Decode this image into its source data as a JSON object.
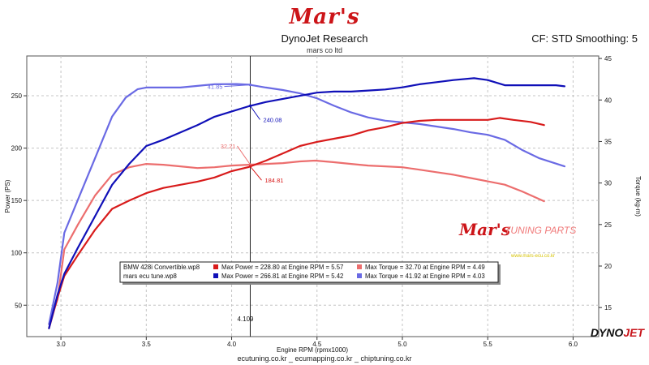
{
  "header": {
    "brand_logo": "Mar's",
    "title": "DynoJet Research",
    "subtitle": "mars co ltd",
    "correction": "CF: STD Smoothing: 5"
  },
  "footer": {
    "text": "ecutuning.co.kr _ ecumapping.co.kr _ chiptuning.co.kr"
  },
  "watermark": {
    "logo": "Mar's",
    "text": "TUNING PARTS",
    "url": "www.mars-ecu.co.kr"
  },
  "dynojet_logo": {
    "part1": "DYNO",
    "part2": "JET"
  },
  "colors": {
    "red": "#d81b1b",
    "light_red": "#ec6e6e",
    "blue": "#1010b8",
    "light_blue": "#6a6ae4",
    "grid": "#bdbdbd",
    "logo_red": "#cc1418"
  },
  "chart_data": {
    "type": "line",
    "xlabel": "Engine RPM (rpmx1000)",
    "ylabel": "Power (PS)",
    "y2label": "Torque (kg-m)",
    "xlim": [
      2.8,
      6.15
    ],
    "ylim": [
      20,
      288
    ],
    "y2lim": [
      11.5,
      45.3
    ],
    "x_ticks": [
      3.0,
      3.5,
      4.0,
      4.5,
      5.0,
      5.5,
      6.0
    ],
    "y_ticks": [
      50,
      100,
      150,
      200,
      250
    ],
    "y2_ticks": [
      15,
      20,
      25,
      30,
      35,
      40,
      45
    ],
    "grid": true,
    "cursor": {
      "x": 4.109,
      "label": "4.109"
    },
    "annotations": [
      {
        "label": "41.85",
        "series": "mars ecu tune.wp8 Torque"
      },
      {
        "label": "240.08",
        "series": "mars ecu tune.wp8 Power"
      },
      {
        "label": "32.21",
        "series": "BMW 428i Convertible.wp8 Torque"
      },
      {
        "label": "184.81",
        "series": "BMW 428i Convertible.wp8 Power"
      }
    ],
    "legend": {
      "placement": "bottom-left",
      "rows": [
        {
          "file": "BMW 428i Convertible.wp8",
          "power": "Max Power = 228.80 at Engine RPM = 5.57",
          "torque": "Max Torque = 32.70 at Engine RPM = 4.49"
        },
        {
          "file": "mars ecu tune.wp8",
          "power": "Max Power = 266.81 at Engine RPM = 5.42",
          "torque": "Max Torque = 41.92 at Engine RPM = 4.03"
        }
      ]
    },
    "series": [
      {
        "file": "BMW 428i Convertible.wp8",
        "quantity": "Power",
        "axis": "left",
        "color": "#d81b1b",
        "x": [
          2.93,
          2.98,
          3.02,
          3.1,
          3.2,
          3.3,
          3.4,
          3.5,
          3.6,
          3.7,
          3.8,
          3.9,
          4.0,
          4.1,
          4.2,
          4.3,
          4.4,
          4.5,
          4.6,
          4.7,
          4.8,
          4.9,
          5.0,
          5.1,
          5.2,
          5.3,
          5.4,
          5.5,
          5.57,
          5.65,
          5.75,
          5.83
        ],
        "values": [
          28,
          57,
          78,
          98,
          122,
          142,
          150,
          157,
          162,
          165,
          168,
          172,
          178,
          182,
          188,
          195,
          202,
          206,
          209,
          212,
          217,
          220,
          224,
          226,
          227,
          227,
          227,
          227,
          228.8,
          227,
          225,
          222
        ]
      },
      {
        "file": "mars ecu tune.wp8",
        "quantity": "Power",
        "axis": "left",
        "color": "#1010b8",
        "x": [
          2.93,
          2.98,
          3.02,
          3.1,
          3.2,
          3.3,
          3.4,
          3.5,
          3.6,
          3.7,
          3.8,
          3.9,
          4.0,
          4.1,
          4.2,
          4.3,
          4.4,
          4.5,
          4.6,
          4.7,
          4.8,
          4.9,
          5.0,
          5.1,
          5.2,
          5.3,
          5.42,
          5.5,
          5.6,
          5.7,
          5.8,
          5.9,
          5.95
        ],
        "values": [
          28,
          60,
          80,
          105,
          135,
          165,
          185,
          202,
          208,
          215,
          222,
          230,
          235,
          240,
          244,
          247,
          250,
          253,
          254,
          254,
          255,
          256,
          258,
          261,
          263,
          265,
          266.8,
          265,
          260,
          260,
          260,
          260,
          259
        ]
      },
      {
        "file": "BMW 428i Convertible.wp8",
        "quantity": "Torque",
        "axis": "right",
        "color": "#ec6e6e",
        "x": [
          2.93,
          2.98,
          3.02,
          3.1,
          3.2,
          3.3,
          3.4,
          3.5,
          3.6,
          3.7,
          3.8,
          3.9,
          4.0,
          4.1,
          4.2,
          4.3,
          4.4,
          4.49,
          4.6,
          4.7,
          4.8,
          4.9,
          5.0,
          5.1,
          5.2,
          5.3,
          5.4,
          5.5,
          5.6,
          5.7,
          5.83
        ],
        "values": [
          13,
          16,
          22,
          25,
          28.5,
          31,
          31.9,
          32.3,
          32.2,
          32.0,
          31.8,
          31.9,
          32.1,
          32.2,
          32.3,
          32.4,
          32.6,
          32.7,
          32.5,
          32.3,
          32.1,
          32.0,
          31.9,
          31.6,
          31.3,
          31.0,
          30.6,
          30.2,
          29.8,
          29.0,
          27.8
        ]
      },
      {
        "file": "mars ecu tune.wp8",
        "quantity": "Torque",
        "axis": "right",
        "color": "#6a6ae4",
        "x": [
          2.93,
          2.98,
          3.02,
          3.1,
          3.2,
          3.3,
          3.38,
          3.45,
          3.5,
          3.6,
          3.7,
          3.8,
          3.9,
          4.03,
          4.1,
          4.2,
          4.3,
          4.4,
          4.5,
          4.6,
          4.7,
          4.8,
          4.9,
          5.0,
          5.1,
          5.2,
          5.3,
          5.4,
          5.5,
          5.6,
          5.7,
          5.8,
          5.95
        ],
        "values": [
          13,
          18,
          24,
          28,
          33,
          38,
          40.3,
          41.3,
          41.5,
          41.5,
          41.5,
          41.7,
          41.9,
          41.92,
          41.85,
          41.5,
          41.2,
          40.8,
          40.2,
          39.3,
          38.5,
          37.9,
          37.5,
          37.3,
          37.1,
          36.8,
          36.5,
          36.1,
          35.8,
          35.2,
          34.0,
          33.0,
          32.0
        ]
      }
    ]
  }
}
